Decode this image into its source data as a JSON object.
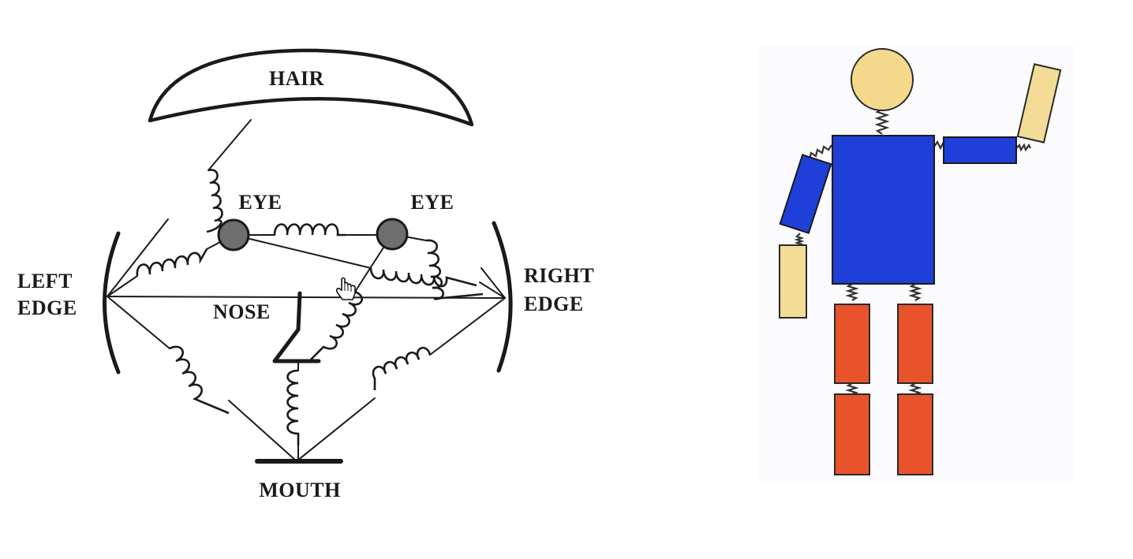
{
  "face_diagram": {
    "labels": {
      "hair": "HAIR",
      "eye_left": "EYE",
      "eye_right": "EYE",
      "left_edge_line1": "LEFT",
      "left_edge_line2": "EDGE",
      "right_edge_line1": "RIGHT",
      "right_edge_line2": "EDGE",
      "nose": "NOSE",
      "mouth": "MOUTH"
    }
  },
  "colors": {
    "ink": "#1a1a1a",
    "eye_fill": "#6e6e6e",
    "head": "#f4d98d",
    "torso": "#1e3fd8",
    "upper_arm": "#1e3fd8",
    "hand": "#f2dc96",
    "leg": "#e8532c",
    "figure_panel": "#fbfbfd",
    "spring": "#333333"
  },
  "icons": {
    "cursor": "hand-pointer-icon"
  }
}
